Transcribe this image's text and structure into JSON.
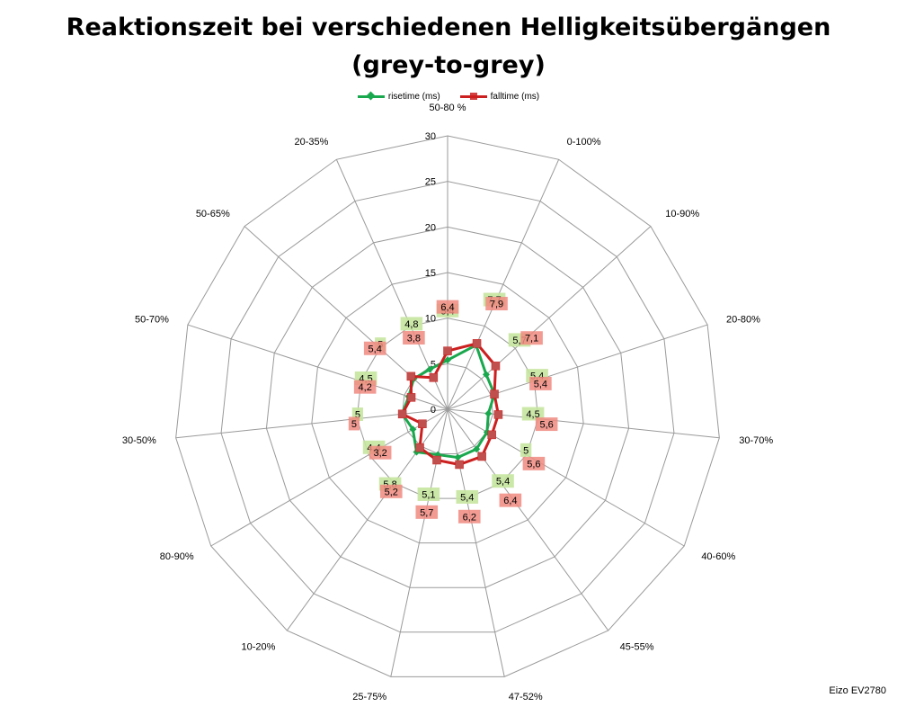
{
  "title_line1": "Reaktionszeit bei verschiedenen Helligkeitsübergängen",
  "title_line2": "(grey-to-grey)",
  "footer": "Eizo EV2780",
  "colors": {
    "rise": "#1aa84e",
    "fall": "#cc1f1f",
    "rise_label_bg": "#c6e6a0",
    "fall_label_bg": "#f08a80",
    "grid": "#9a9a9a"
  },
  "chart_data": {
    "type": "radar",
    "categories": [
      "50-80 %",
      "0-100%",
      "10-90%",
      "20-80%",
      "30-70%",
      "40-60%",
      "45-55%",
      "47-52%",
      "25-75%",
      "10-20%",
      "80-90%",
      "30-50%",
      "50-70%",
      "50-65%",
      "20-35%"
    ],
    "series": [
      {
        "name": "risetime (ms)",
        "values": [
          5.4,
          7.7,
          5.7,
          5.4,
          4.5,
          5,
          5.4,
          5.4,
          5.1,
          5.8,
          4.4,
          5,
          4.5,
          5,
          4.8
        ],
        "labels": [
          "5,4",
          "7,7",
          "5,7",
          "5,4",
          "4,5",
          "5",
          "5,4",
          "5,4",
          "5,1",
          "5,8",
          "4,4",
          "5",
          "4,5",
          "5",
          "4,8"
        ]
      },
      {
        "name": "falltime (ms)",
        "values": [
          6.4,
          7.9,
          7.1,
          5.4,
          5.6,
          5.6,
          6.4,
          6.2,
          5.7,
          5.2,
          3.2,
          5,
          4.2,
          5.4,
          3.8
        ],
        "labels": [
          "6,4",
          "7,9",
          "7,1",
          "5,4",
          "5,6",
          "5,6",
          "6,4",
          "6,2",
          "5,7",
          "5,2",
          "3,2",
          "5",
          "4,2",
          "5,4",
          "3,8"
        ]
      }
    ],
    "r_ticks": [
      0,
      5,
      10,
      15,
      20,
      25,
      30
    ],
    "r_tick_labels": [
      "0",
      "5",
      "10",
      "15",
      "20",
      "25",
      "30"
    ],
    "rlim": [
      0,
      30
    ],
    "grid": true,
    "legend_position": "top"
  }
}
